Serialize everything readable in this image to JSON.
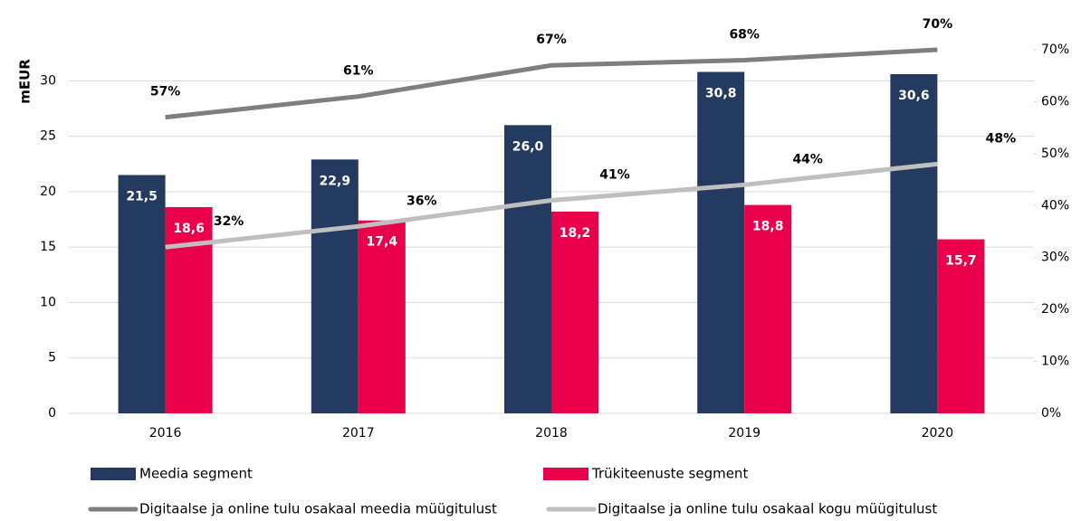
{
  "chart_data": {
    "type": "bar",
    "ylabel": "mEUR",
    "categories": [
      "2016",
      "2017",
      "2018",
      "2019",
      "2020"
    ],
    "ylim": [
      0,
      32.8
    ],
    "yticks": [
      0,
      5,
      10,
      15,
      20,
      25,
      30
    ],
    "y2lim": [
      0,
      70
    ],
    "y2ticks": [
      {
        "value": 0,
        "label": "0%"
      },
      {
        "value": 10,
        "label": "10%"
      },
      {
        "value": 20,
        "label": "20%"
      },
      {
        "value": 30,
        "label": "30%"
      },
      {
        "value": 40,
        "label": "40%"
      },
      {
        "value": 50,
        "label": "50%"
      },
      {
        "value": 60,
        "label": "60%"
      },
      {
        "value": 70,
        "label": "70%"
      }
    ],
    "grid": true,
    "series": [
      {
        "name": "Meedia segment",
        "type": "bar",
        "color": "#243a5e",
        "values": [
          21.5,
          22.9,
          26.0,
          30.8,
          30.6
        ],
        "value_labels": [
          "21,5",
          "22,9",
          "26,0",
          "30,8",
          "30,6"
        ]
      },
      {
        "name": "Trükiteenuste segment",
        "type": "bar",
        "color": "#e8004c",
        "values": [
          18.6,
          17.4,
          18.2,
          18.8,
          15.7
        ],
        "value_labels": [
          "18,6",
          "17,4",
          "18,2",
          "18,8",
          "15,7"
        ]
      },
      {
        "name": "Digitaalse ja online tulu osakaal meedia müügitulust",
        "type": "line",
        "axis": "y2",
        "color": "#7f7f7f",
        "values": [
          57,
          61,
          67,
          68,
          70
        ],
        "value_labels": [
          "57%",
          "61%",
          "67%",
          "68%",
          "70%"
        ]
      },
      {
        "name": "Digitaalse ja online tulu osakaal kogu müügitulust",
        "type": "line",
        "axis": "y2",
        "color": "#bfbfbf",
        "values": [
          32,
          36,
          41,
          44,
          48
        ],
        "value_labels": [
          "32%",
          "36%",
          "41%",
          "44%",
          "48%"
        ]
      }
    ]
  }
}
